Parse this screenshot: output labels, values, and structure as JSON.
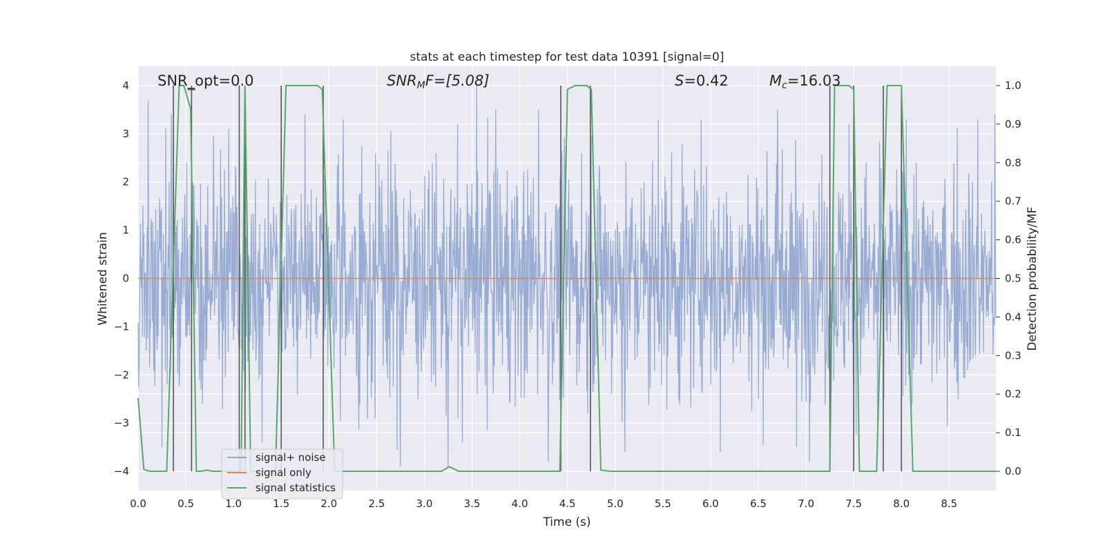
{
  "chart_data": {
    "type": "line",
    "title": "stats at each timestep for test data 10391 [signal=0]",
    "xlabel": "Time (s)",
    "ylabel": "Whitened strain",
    "y2label": "Detection probability/MF",
    "xlim": [
      0,
      8.99
    ],
    "ylim": [
      -4.4,
      4.4
    ],
    "y2lim": [
      -0.05,
      1.05
    ],
    "x_ticks": [
      "0.0",
      "0.5",
      "1.0",
      "1.5",
      "2.0",
      "2.5",
      "3.0",
      "3.5",
      "4.0",
      "4.5",
      "5.0",
      "5.5",
      "6.0",
      "6.5",
      "7.0",
      "7.5",
      "8.0",
      "8.5"
    ],
    "y_ticks": [
      "−4",
      "−3",
      "−2",
      "−1",
      "0",
      "1",
      "2",
      "3",
      "4"
    ],
    "y2_ticks": [
      "0.0",
      "0.1",
      "0.2",
      "0.3",
      "0.4",
      "0.5",
      "0.6",
      "0.7",
      "0.8",
      "0.9",
      "1.0"
    ],
    "grid": true,
    "legend_position": "lower-left",
    "annotations": {
      "snr_opt": "SNR_opt=0.0",
      "snr_mf_sym": "SNR",
      "snr_mf_sub": "M",
      "snr_mf_rest": "F=[5.08]",
      "s_sym": "S",
      "s_rest": "=0.42",
      "mc_sym": "M",
      "mc_sub": "c",
      "mc_rest": "=16.03"
    },
    "series": [
      {
        "name": "signal+ noise",
        "color": "#8fa5cf",
        "amplitude_typical": 1.6,
        "amplitude_peak": 4.0,
        "peaks": [
          [
            0.35,
            3.4
          ],
          [
            0.95,
            3.1
          ],
          [
            1.12,
            3.6
          ],
          [
            1.3,
            3.6
          ],
          [
            1.75,
            3.4
          ],
          [
            2.15,
            3.3
          ],
          [
            3.35,
            3.2
          ],
          [
            3.55,
            4.0
          ],
          [
            3.75,
            3.5
          ],
          [
            4.2,
            3.5
          ],
          [
            5.45,
            3.3
          ],
          [
            5.9,
            3.3
          ],
          [
            6.7,
            3.5
          ],
          [
            7.45,
            3.2
          ],
          [
            7.75,
            3.3
          ],
          [
            8.05,
            3.3
          ],
          [
            8.8,
            3.3
          ],
          [
            8.98,
            3.4
          ],
          [
            0.25,
            -3.5
          ],
          [
            1.3,
            -3.4
          ],
          [
            2.75,
            -3.9
          ],
          [
            3.25,
            -3.9
          ],
          [
            3.4,
            -3.4
          ],
          [
            4.3,
            -3.8
          ],
          [
            5.1,
            -3.6
          ],
          [
            6.1,
            -3.6
          ],
          [
            6.9,
            -3.5
          ],
          [
            7.75,
            -3.5
          ]
        ]
      },
      {
        "name": "signal only",
        "color": "#dd8452",
        "x": [
          0,
          8.99
        ],
        "y": [
          0,
          0
        ]
      },
      {
        "name": "signal statistics",
        "color": "#55a868",
        "axis": "right",
        "x": [
          0.0,
          0.06,
          0.12,
          0.3,
          0.43,
          0.48,
          0.55,
          0.61,
          0.66,
          0.72,
          0.78,
          0.84,
          1.08,
          1.12,
          1.18,
          1.24,
          1.3,
          1.44,
          1.55,
          1.72,
          1.88,
          1.93,
          2.06,
          3.18,
          3.26,
          3.36,
          4.42,
          4.5,
          4.58,
          4.7,
          4.75,
          4.85,
          4.95,
          7.25,
          7.3,
          7.45,
          7.5,
          7.56,
          7.68,
          7.74,
          7.85,
          7.92,
          8.0,
          8.12,
          8.99
        ],
        "y": [
          0.19,
          0.005,
          0.0,
          0.0,
          1.0,
          1.0,
          0.94,
          0.0,
          0.0,
          0.003,
          0.0,
          0.0,
          0.0,
          1.0,
          0.0,
          0.0,
          0.0,
          0.0,
          1.0,
          1.0,
          1.0,
          0.99,
          0.0,
          0.0,
          0.012,
          0.0,
          0.0,
          0.99,
          1.0,
          1.0,
          0.99,
          0.003,
          0.0,
          0.0,
          1.0,
          1.0,
          0.99,
          0.0,
          0.0,
          0.0,
          1.0,
          1.0,
          1.0,
          0.0,
          0.0
        ]
      }
    ],
    "vertical_markers": {
      "color": "#555555",
      "x": [
        0.37,
        0.56,
        1.06,
        1.12,
        1.5,
        1.94,
        4.43,
        4.74,
        7.25,
        7.5,
        7.81,
        8.0
      ]
    }
  }
}
